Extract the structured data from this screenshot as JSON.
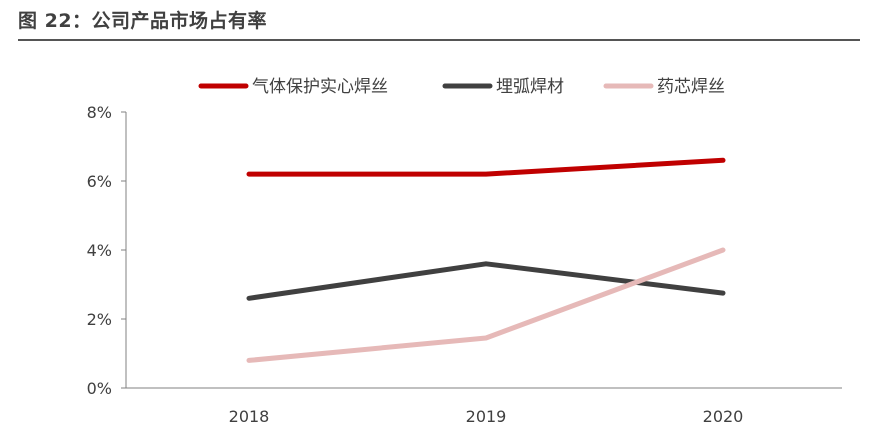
{
  "figure": {
    "title": "图 22：公司产品市场占有率"
  },
  "chart_data": {
    "type": "line",
    "title": "",
    "xlabel": "",
    "ylabel": "",
    "categories": [
      "2018",
      "2019",
      "2020"
    ],
    "ylim": [
      0,
      8
    ],
    "yticks": [
      0,
      2,
      4,
      6,
      8
    ],
    "ytick_labels": [
      "0%",
      "2%",
      "4%",
      "6%",
      "8%"
    ],
    "grid": false,
    "legend_position": "top",
    "series": [
      {
        "name": "气体保护实心焊丝",
        "color": "#c00000",
        "values": [
          6.2,
          6.2,
          6.6
        ]
      },
      {
        "name": "埋弧焊材",
        "color": "#404040",
        "values": [
          2.6,
          3.6,
          2.75
        ]
      },
      {
        "name": "药芯焊丝",
        "color": "#e6b9b8",
        "values": [
          0.8,
          1.45,
          4.0
        ]
      }
    ]
  }
}
